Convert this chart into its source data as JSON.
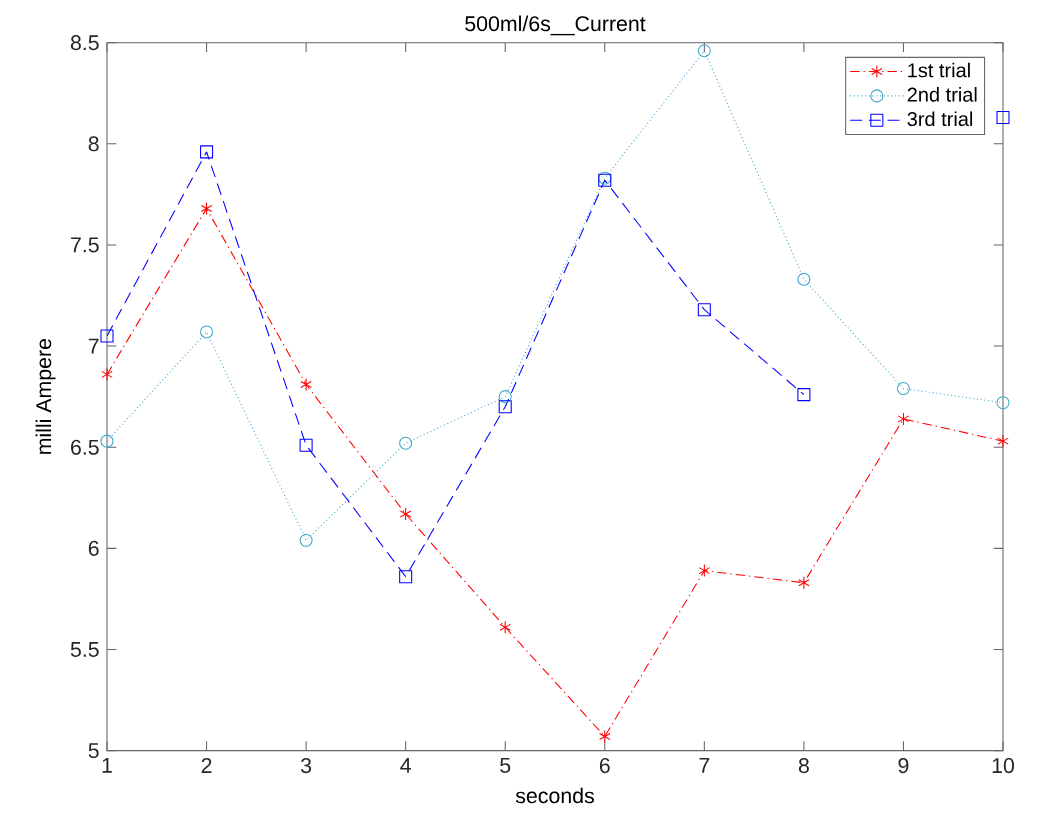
{
  "chart_data": {
    "type": "line",
    "title": "500ml/6s__Current",
    "xlabel": "seconds",
    "ylabel": "milli Ampere",
    "x": [
      1,
      2,
      3,
      4,
      5,
      6,
      7,
      8,
      9,
      10
    ],
    "xlim": [
      1,
      10
    ],
    "xticks": [
      1,
      2,
      3,
      4,
      5,
      6,
      7,
      8,
      9,
      10
    ],
    "ylim": [
      5,
      8.5
    ],
    "yticks": [
      5,
      5.5,
      6,
      6.5,
      7,
      7.5,
      8,
      8.5
    ],
    "grid": false,
    "legend": "top right",
    "series": [
      {
        "name": "1st trial",
        "color": "#ff0000",
        "marker": "cross",
        "line_style": "dashdot",
        "values": [
          6.86,
          7.68,
          6.81,
          6.17,
          5.61,
          5.07,
          5.89,
          5.83,
          6.64,
          6.53
        ]
      },
      {
        "name": "2nd trial",
        "color": "#3fa9c9",
        "marker": "circle",
        "line_style": "dotted",
        "values": [
          6.53,
          7.07,
          6.04,
          6.52,
          6.75,
          7.83,
          8.46,
          7.33,
          6.79,
          6.72
        ]
      },
      {
        "name": "3rd trial",
        "color": "#0000ff",
        "marker": "square",
        "line_style": "dashed",
        "values": [
          7.05,
          7.96,
          6.51,
          5.86,
          6.7,
          7.82,
          7.18,
          6.76,
          null,
          8.13
        ]
      }
    ]
  }
}
